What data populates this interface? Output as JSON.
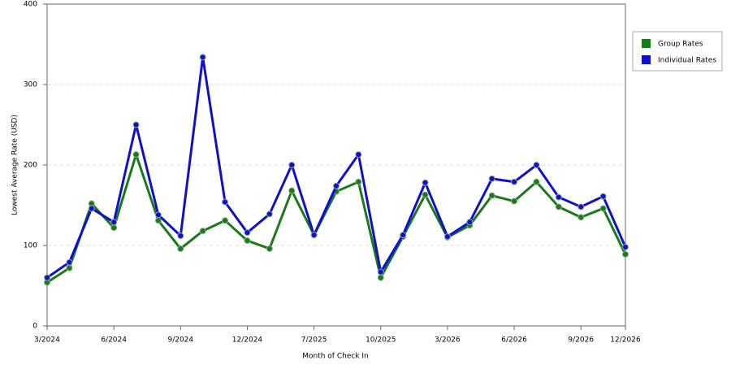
{
  "chart_data": {
    "type": "line",
    "x_label": "Month of Check In",
    "y_label": "Lowest Average Rate (USD)",
    "categories": [
      "3/2024",
      null,
      null,
      "6/2024",
      null,
      null,
      "9/2024",
      null,
      null,
      "12/2024",
      null,
      null,
      "7/2025",
      null,
      null,
      "10/2025",
      null,
      null,
      "3/2026",
      null,
      null,
      "6/2026",
      null,
      null,
      "9/2026",
      null,
      "12/2026"
    ],
    "series": [
      {
        "name": "Group Rates",
        "color": "#1a7a1a",
        "values": [
          54,
          72,
          152,
          122,
          213,
          131,
          96,
          118,
          131,
          106,
          96,
          168,
          113,
          167,
          179,
          60,
          111,
          163,
          110,
          125,
          162,
          155,
          179,
          148,
          135,
          146,
          89
        ]
      },
      {
        "name": "Individual Rates",
        "color": "#1010cc",
        "values": [
          60,
          79,
          146,
          129,
          250,
          138,
          112,
          334,
          154,
          116,
          139,
          200,
          113,
          174,
          213,
          67,
          113,
          178,
          111,
          129,
          183,
          179,
          200,
          160,
          148,
          161,
          98
        ]
      }
    ],
    "ylim": [
      0,
      400
    ],
    "yticks": [
      0,
      100,
      200,
      300,
      400
    ],
    "grid": true,
    "legend": "right"
  }
}
